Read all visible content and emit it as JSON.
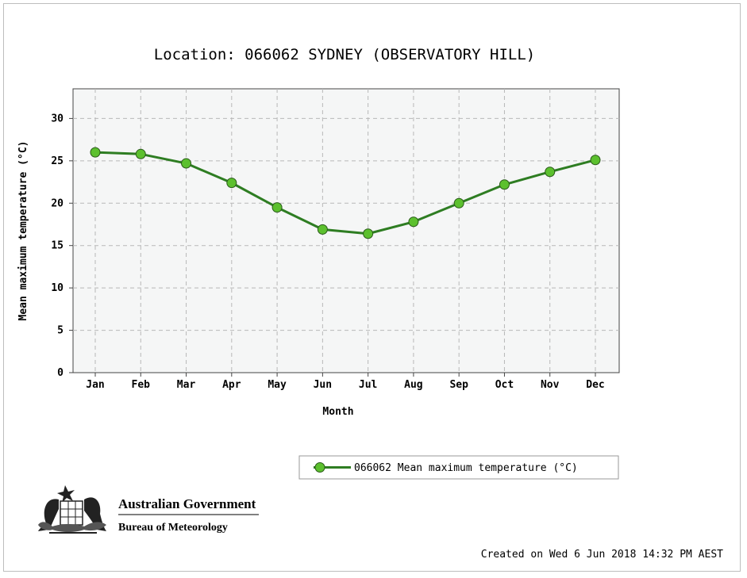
{
  "chart_data": {
    "type": "line",
    "title": "Location: 066062 SYDNEY (OBSERVATORY HILL)",
    "xlabel": "Month",
    "ylabel": "Mean maximum temperature (°C)",
    "categories": [
      "Jan",
      "Feb",
      "Mar",
      "Apr",
      "May",
      "Jun",
      "Jul",
      "Aug",
      "Sep",
      "Oct",
      "Nov",
      "Dec"
    ],
    "y_ticks": [
      "0",
      "5",
      "10",
      "15",
      "20",
      "25",
      "30"
    ],
    "ylim": [
      0,
      33.5
    ],
    "grid": true,
    "legend_position": "bottom-right",
    "series": [
      {
        "name": "066062 Mean maximum temperature (°C)",
        "values": [
          26.0,
          25.8,
          24.7,
          22.4,
          19.5,
          16.9,
          16.4,
          17.8,
          20.0,
          22.2,
          23.7,
          25.1
        ],
        "color": "#2e7d22",
        "marker_color": "#5cc02e"
      }
    ]
  },
  "footer": {
    "created": "Created on Wed  6 Jun 2018 14:32 PM AEST"
  },
  "logo": {
    "line1": "Australian Government",
    "line2": "Bureau of Meteorology"
  }
}
